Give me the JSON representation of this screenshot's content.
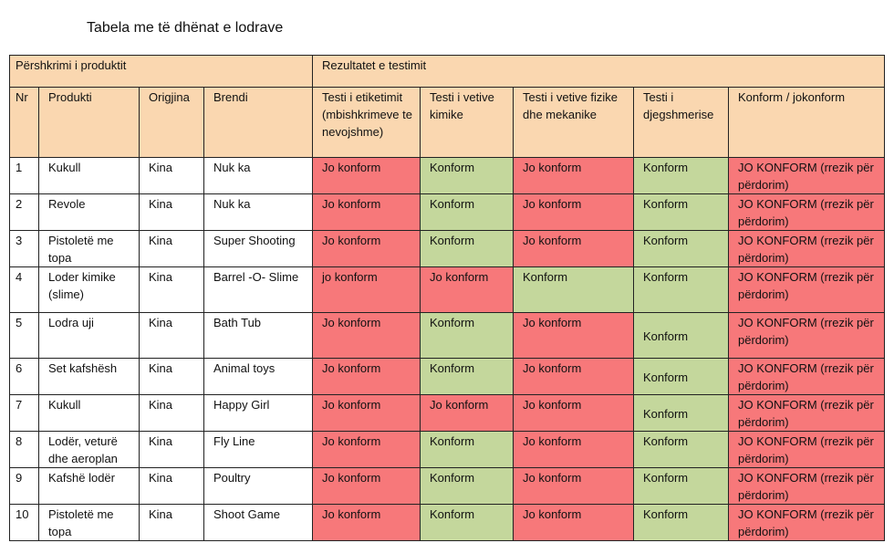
{
  "title": "Tabela me të dhënat e lodrave",
  "groups": {
    "product": "Përshkrimi i produktit",
    "results": "Rezultatet e testimit"
  },
  "columns": {
    "nr": "Nr",
    "product": "Produkti",
    "origin": "Origjina",
    "brand": "Brendi",
    "labeling": "Testi i etiketimit (mbishkrimeve te nevojshme)",
    "chemical": "Testi i vetive kimike",
    "physical": "Testi i vetive fizike dhe mekanike",
    "flammability": "Testi i djegshmerise",
    "conformity": "Konform / jokonform"
  },
  "colors": {
    "header": "#fad7b0",
    "nonconform": "#f7787a",
    "conform": "#c4d79c"
  },
  "rows": [
    {
      "nr": "1",
      "product": "Kukull",
      "origin": "Kina",
      "brand": "Nuk ka",
      "labeling": "Jo konform",
      "chemical": "Konform",
      "physical": "Jo konform",
      "flammability": "Konform",
      "conformity": "JO KONFORM (rrezik për përdorim)"
    },
    {
      "nr": "2",
      "product": "Revole",
      "origin": "Kina",
      "brand": "Nuk ka",
      "labeling": "Jo konform",
      "chemical": "Konform",
      "physical": "Jo konform",
      "flammability": "Konform",
      "conformity": "JO KONFORM (rrezik për përdorim)"
    },
    {
      "nr": "3",
      "product": "Pistoletë me topa",
      "origin": "Kina",
      "brand": "Super Shooting",
      "labeling": "Jo konform",
      "chemical": "Konform",
      "physical": "Jo konform",
      "flammability": "Konform",
      "conformity": "JO KONFORM (rrezik për përdorim)"
    },
    {
      "nr": "4",
      "product": "Loder kimike (slime)",
      "origin": "Kina",
      "brand": "Barrel -O- Slime",
      "labeling": "jo konform",
      "chemical": "Jo konform",
      "physical": "Konform",
      "flammability": "Konform",
      "conformity": "JO KONFORM (rrezik për përdorim)"
    },
    {
      "nr": "5",
      "product": "Lodra uji",
      "origin": "Kina",
      "brand": "Bath Tub",
      "labeling": "Jo konform",
      "chemical": "Konform",
      "physical": "Jo konform",
      "flammability": "Konform",
      "conformity": "JO KONFORM (rrezik për përdorim)"
    },
    {
      "nr": "6",
      "product": "Set kafshësh",
      "origin": "Kina",
      "brand": "Animal toys",
      "labeling": "Jo konform",
      "chemical": "Konform",
      "physical": "Jo konform",
      "flammability": "Konform",
      "conformity": "JO KONFORM (rrezik për përdorim)"
    },
    {
      "nr": "7",
      "product": "Kukull",
      "origin": "Kina",
      "brand": "Happy Girl",
      "labeling": "Jo konform",
      "chemical": "Jo konform",
      "physical": "Jo konform",
      "flammability": "Konform",
      "conformity": "JO KONFORM (rrezik për përdorim)"
    },
    {
      "nr": "8",
      "product": "Lodër, veturë dhe aeroplan",
      "origin": "Kina",
      "brand": "Fly Line",
      "labeling": "Jo konform",
      "chemical": "Konform",
      "physical": "Jo konform",
      "flammability": "Konform",
      "conformity": "JO KONFORM (rrezik për përdorim)"
    },
    {
      "nr": "9",
      "product": "Kafshë lodër",
      "origin": "Kina",
      "brand": "Poultry",
      "labeling": "Jo konform",
      "chemical": "Konform",
      "physical": "Jo konform",
      "flammability": "Konform",
      "conformity": "JO KONFORM (rrezik për përdorim)"
    },
    {
      "nr": "10",
      "product": "Pistoletë me topa",
      "origin": "Kina",
      "brand": "Shoot Game",
      "labeling": "Jo konform",
      "chemical": "Konform",
      "physical": "Jo konform",
      "flammability": "Konform",
      "conformity": "JO KONFORM (rrezik për përdorim)"
    }
  ]
}
